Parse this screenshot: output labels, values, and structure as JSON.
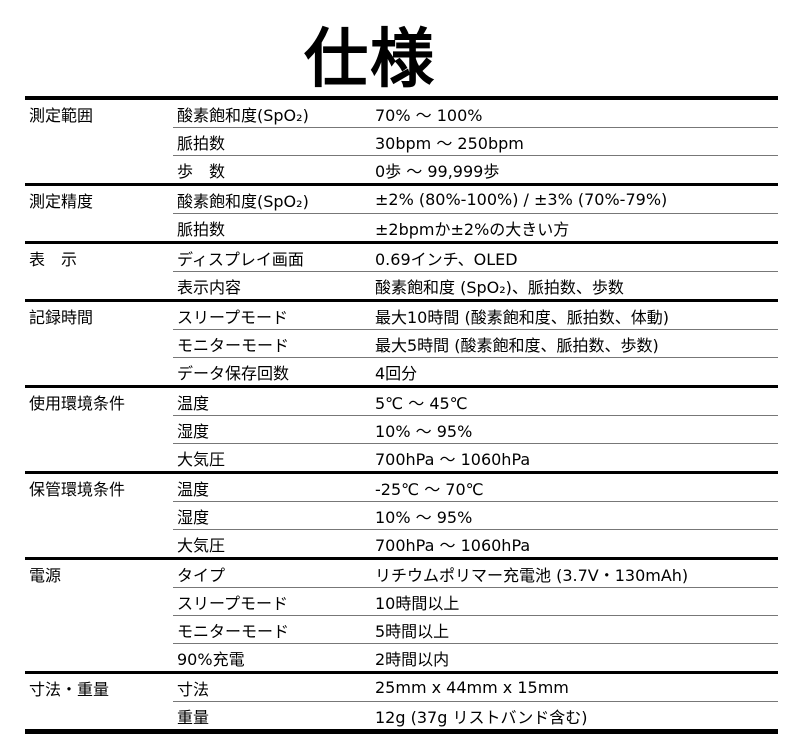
{
  "title": "仕様",
  "groups": [
    {
      "category": "測定範囲",
      "rows": [
        {
          "item": "酸素飽和度(SpO₂)",
          "value": "70% ～ 100%"
        },
        {
          "item": "脈拍数",
          "value": "30bpm ～ 250bpm"
        },
        {
          "item": "歩　数",
          "value": "0歩 ～ 99,999歩"
        }
      ]
    },
    {
      "category": "測定精度",
      "rows": [
        {
          "item": "酸素飽和度(SpO₂)",
          "value": "±2% (80%-100%) / ±3% (70%-79%)"
        },
        {
          "item": "脈拍数",
          "value": "±2bpmか±2%の大きい方"
        }
      ]
    },
    {
      "category": "表　示",
      "rows": [
        {
          "item": "ディスプレイ画面",
          "value": "0.69インチ、OLED"
        },
        {
          "item": "表示内容",
          "value": "酸素飽和度 (SpO₂)、脈拍数、歩数"
        }
      ]
    },
    {
      "category": "記録時間",
      "rows": [
        {
          "item": "スリープモード",
          "value": "最大10時間 (酸素飽和度、脈拍数、体動)"
        },
        {
          "item": "モニターモード",
          "value": "最大5時間 (酸素飽和度、脈拍数、歩数)"
        },
        {
          "item": "データ保存回数",
          "value": "4回分"
        }
      ]
    },
    {
      "category": "使用環境条件",
      "rows": [
        {
          "item": "温度",
          "value": "5℃ ～ 45℃"
        },
        {
          "item": "湿度",
          "value": "10% ～ 95%"
        },
        {
          "item": "大気圧",
          "value": "700hPa ～ 1060hPa"
        }
      ]
    },
    {
      "category": "保管環境条件",
      "rows": [
        {
          "item": "温度",
          "value": "-25℃ ～ 70℃"
        },
        {
          "item": "湿度",
          "value": "10% ～ 95%"
        },
        {
          "item": "大気圧",
          "value": "700hPa ～ 1060hPa"
        }
      ]
    },
    {
      "category": "電源",
      "rows": [
        {
          "item": "タイプ",
          "value": "リチウムポリマー充電池 (3.7V・130mAh)"
        },
        {
          "item": "スリープモード",
          "value": "10時間以上"
        },
        {
          "item": "モニターモード",
          "value": "5時間以上"
        },
        {
          "item": "90%充電",
          "value": "2時間以内"
        }
      ]
    },
    {
      "category": "寸法・重量",
      "rows": [
        {
          "item": "寸法",
          "value": "25mm x 44mm x 15mm"
        },
        {
          "item": "重量",
          "value": "12g (37g リストバンド含む)"
        }
      ]
    }
  ]
}
